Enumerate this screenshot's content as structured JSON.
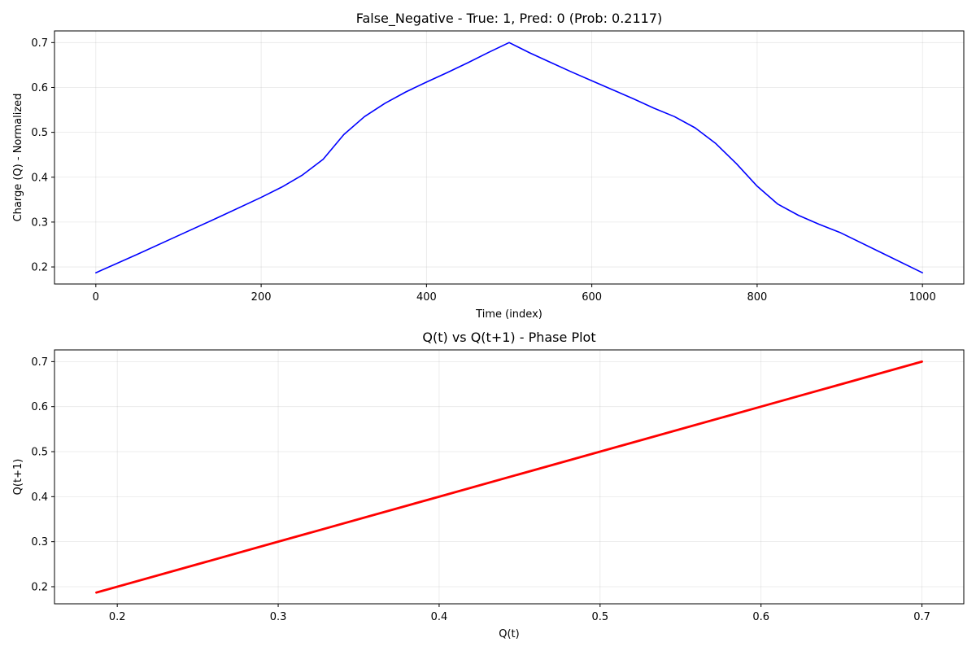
{
  "chart_data": [
    {
      "type": "line",
      "title": "False_Negative - True: 1, Pred: 0 (Prob: 0.2117)",
      "xlabel": "Time (index)",
      "ylabel": "Charge (Q) - Normalized",
      "xlim": [
        -50,
        1050
      ],
      "ylim": [
        0.162,
        0.726
      ],
      "xticks": [
        0,
        200,
        400,
        600,
        800,
        1000
      ],
      "yticks": [
        0.2,
        0.3,
        0.4,
        0.5,
        0.6,
        0.7
      ],
      "grid": true,
      "color": "#0000ff",
      "line_width": 1.6,
      "series": [
        {
          "x": [
            0,
            50,
            100,
            150,
            200,
            225,
            250,
            275,
            300,
            325,
            350,
            375,
            400,
            425,
            450,
            475,
            500,
            525,
            550,
            575,
            600,
            625,
            650,
            675,
            700,
            725,
            750,
            775,
            800,
            825,
            850,
            875,
            900,
            950,
            1000
          ],
          "y": [
            0.187,
            0.228,
            0.27,
            0.312,
            0.355,
            0.378,
            0.405,
            0.44,
            0.495,
            0.535,
            0.565,
            0.59,
            0.612,
            0.633,
            0.655,
            0.678,
            0.7,
            0.677,
            0.656,
            0.635,
            0.615,
            0.595,
            0.575,
            0.554,
            0.535,
            0.51,
            0.475,
            0.43,
            0.38,
            0.34,
            0.315,
            0.295,
            0.277,
            0.232,
            0.187
          ]
        }
      ]
    },
    {
      "type": "line",
      "title": "Q(t) vs Q(t+1) - Phase Plot",
      "xlabel": "Q(t)",
      "ylabel": "Q(t+1)",
      "xlim": [
        0.161,
        0.726
      ],
      "ylim": [
        0.162,
        0.726
      ],
      "xticks": [
        0.2,
        0.3,
        0.4,
        0.5,
        0.6,
        0.7
      ],
      "yticks": [
        0.2,
        0.3,
        0.4,
        0.5,
        0.6,
        0.7
      ],
      "grid": true,
      "color": "#ff0000",
      "line_width": 2.8,
      "series": [
        {
          "x": [
            0.187,
            0.3,
            0.4,
            0.5,
            0.6,
            0.7
          ],
          "y": [
            0.187,
            0.3,
            0.4,
            0.5,
            0.6,
            0.7
          ]
        }
      ]
    }
  ]
}
